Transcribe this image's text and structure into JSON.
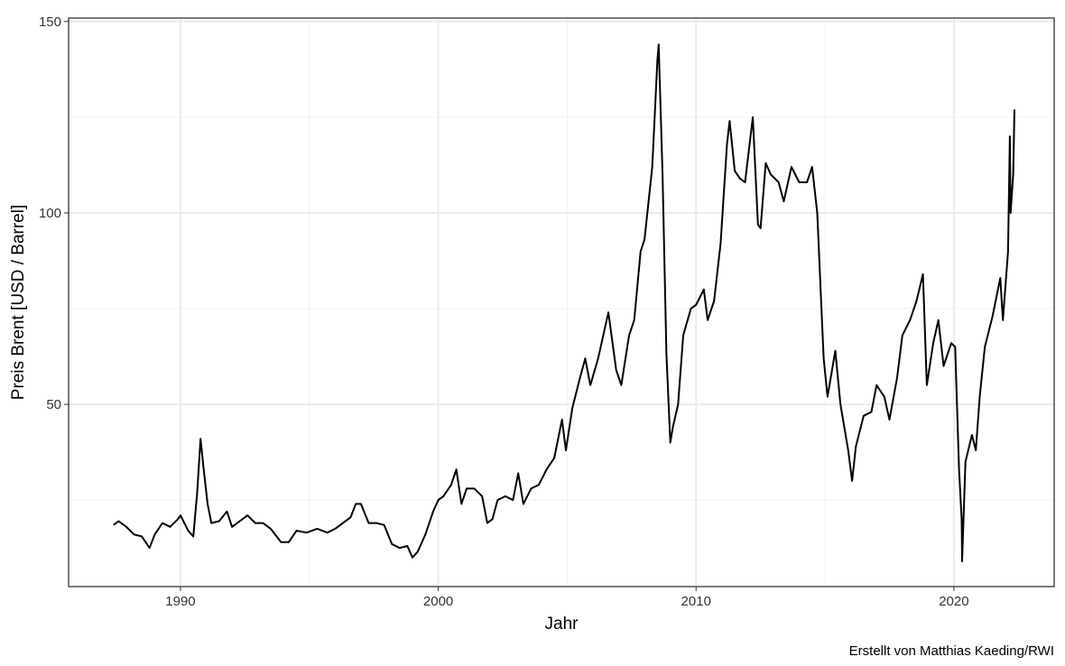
{
  "chart_data": {
    "type": "line",
    "xlabel": "Jahr",
    "ylabel": "Preis Brent [USD / Barrel]",
    "caption": "Erstellt von Matthias Kaeding/RWI",
    "xlim": [
      1985.66,
      2023.89
    ],
    "ylim": [
      2.4,
      150.9
    ],
    "xticks": [
      1990,
      2000,
      2010,
      2020
    ],
    "yticks": [
      50,
      100,
      150
    ],
    "xminor": [
      1995,
      2005,
      2015
    ],
    "yminor": [
      25,
      75,
      125
    ],
    "grid": true,
    "x": [
      1987.4,
      1987.6,
      1987.9,
      1988.2,
      1988.5,
      1988.8,
      1989.0,
      1989.3,
      1989.6,
      1989.9,
      1990.0,
      1990.3,
      1990.5,
      1990.65,
      1990.78,
      1990.9,
      1991.05,
      1991.2,
      1991.5,
      1991.8,
      1992.0,
      1992.3,
      1992.6,
      1992.9,
      1993.2,
      1993.5,
      1993.9,
      1994.2,
      1994.5,
      1994.9,
      1995.3,
      1995.7,
      1996.0,
      1996.3,
      1996.6,
      1996.8,
      1997.0,
      1997.3,
      1997.6,
      1997.9,
      1998.2,
      1998.5,
      1998.8,
      1999.0,
      1999.2,
      1999.5,
      1999.8,
      2000.0,
      2000.2,
      2000.5,
      2000.7,
      2000.9,
      2001.1,
      2001.4,
      2001.7,
      2001.9,
      2002.1,
      2002.3,
      2002.6,
      2002.9,
      2003.1,
      2003.3,
      2003.6,
      2003.9,
      2004.2,
      2004.5,
      2004.8,
      2004.95,
      2005.2,
      2005.5,
      2005.7,
      2005.9,
      2006.2,
      2006.6,
      2006.9,
      2007.1,
      2007.4,
      2007.6,
      2007.85,
      2008.0,
      2008.3,
      2008.5,
      2008.55,
      2008.7,
      2008.85,
      2009.0,
      2009.1,
      2009.3,
      2009.5,
      2009.8,
      2010.0,
      2010.3,
      2010.45,
      2010.7,
      2010.95,
      2011.2,
      2011.3,
      2011.5,
      2011.7,
      2011.9,
      2012.2,
      2012.4,
      2012.5,
      2012.7,
      2012.9,
      2013.2,
      2013.4,
      2013.7,
      2014.0,
      2014.3,
      2014.5,
      2014.7,
      2014.95,
      2015.1,
      2015.4,
      2015.6,
      2015.9,
      2016.05,
      2016.2,
      2016.5,
      2016.8,
      2017.0,
      2017.3,
      2017.5,
      2017.8,
      2018.0,
      2018.3,
      2018.55,
      2018.8,
      2018.95,
      2019.2,
      2019.4,
      2019.6,
      2019.9,
      2020.05,
      2020.2,
      2020.3,
      2020.32,
      2020.45,
      2020.7,
      2020.85,
      2021.0,
      2021.2,
      2021.5,
      2021.8,
      2021.9,
      2022.1,
      2022.17,
      2022.2,
      2022.3,
      2022.35
    ],
    "series": [
      {
        "name": "Brent",
        "color": "#000000",
        "values": [
          18.5,
          19.5,
          18,
          16,
          15.5,
          12.5,
          16,
          19,
          18,
          20,
          21,
          17,
          15.5,
          27,
          41,
          33,
          24,
          19,
          19.5,
          22,
          18,
          19.5,
          21,
          19,
          19,
          17.5,
          14,
          14,
          17,
          16.5,
          17.5,
          16.5,
          17.5,
          19,
          20.5,
          24,
          24,
          19,
          19,
          18.5,
          13.5,
          12.5,
          13,
          10,
          11.5,
          16,
          22,
          25,
          26,
          29,
          33,
          24,
          28,
          28,
          26,
          19,
          20,
          25,
          26,
          25,
          32,
          24,
          28,
          29,
          33,
          36,
          46,
          38,
          49,
          57,
          62,
          55,
          62,
          74,
          59,
          55,
          68,
          72,
          90,
          93,
          112,
          140,
          144,
          110,
          63,
          40,
          44,
          50,
          68,
          75,
          76,
          80,
          72,
          77,
          92,
          118,
          124,
          111,
          109,
          108,
          125,
          97,
          96,
          113,
          110,
          108,
          103,
          112,
          108,
          108,
          112,
          100,
          62,
          52,
          64,
          50,
          38,
          30,
          39,
          47,
          48,
          55,
          52,
          46,
          57,
          68,
          72,
          77,
          84,
          55,
          66,
          72,
          60,
          66,
          65,
          33,
          20,
          9,
          35,
          42,
          38,
          52,
          65,
          73,
          83,
          72,
          90,
          120,
          100,
          110,
          127
        ]
      }
    ]
  }
}
